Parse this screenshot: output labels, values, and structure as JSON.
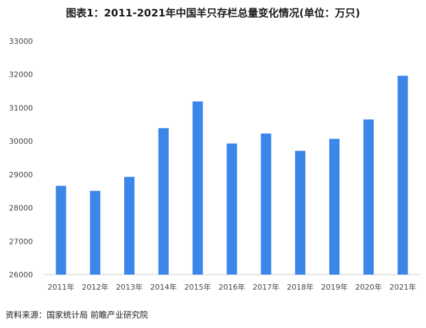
{
  "header": {
    "title": "图表1：2011-2021年中国羊只存栏总量变化情况(单位：万只)"
  },
  "footer": {
    "source": "资料来源：国家统计局 前瞻产业研究院"
  },
  "colors": {
    "bar": "#3b86e8",
    "background": "#ffffff"
  },
  "chart_data": {
    "type": "bar",
    "title": "图表1：2011-2021年中国羊只存栏总量变化情况(单位：万只)",
    "xlabel": "",
    "ylabel": "",
    "categories": [
      "2011年",
      "2012年",
      "2013年",
      "2014年",
      "2015年",
      "2016年",
      "2017年",
      "2018年",
      "2019年",
      "2020年",
      "2021年"
    ],
    "values": [
      28660,
      28510,
      28930,
      30390,
      31190,
      29930,
      30230,
      29710,
      30070,
      30650,
      31960
    ],
    "ylim": [
      26000,
      33000
    ],
    "yticks": [
      26000,
      27000,
      28000,
      29000,
      30000,
      31000,
      32000,
      33000
    ],
    "grid": false,
    "legend": "none"
  }
}
